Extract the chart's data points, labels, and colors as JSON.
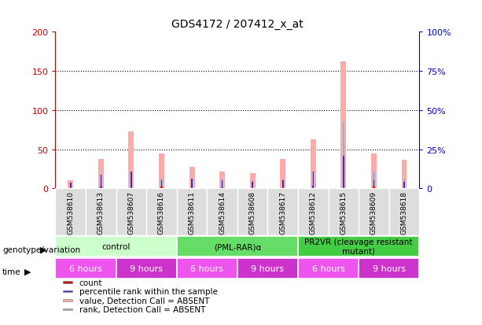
{
  "title": "GDS4172 / 207412_x_at",
  "samples": [
    "GSM538610",
    "GSM538613",
    "GSM538607",
    "GSM538616",
    "GSM538611",
    "GSM538614",
    "GSM538608",
    "GSM538617",
    "GSM538612",
    "GSM538615",
    "GSM538609",
    "GSM538618"
  ],
  "count_values": [
    2,
    2,
    3,
    2,
    2,
    1,
    1,
    2,
    3,
    5,
    2,
    2
  ],
  "percentile_rank": [
    7,
    18,
    22,
    10,
    12,
    10,
    8,
    10,
    22,
    42,
    10,
    8
  ],
  "absent_value": [
    10,
    38,
    73,
    45,
    28,
    22,
    20,
    38,
    63,
    162,
    45,
    37
  ],
  "absent_rank": [
    5,
    18,
    22,
    13,
    12,
    11,
    10,
    13,
    22,
    85,
    22,
    13
  ],
  "genotype_groups": [
    {
      "label": "control",
      "start": 0,
      "end": 4,
      "color": "#ccffcc"
    },
    {
      "label": "(PML-RAR)α",
      "start": 4,
      "end": 8,
      "color": "#66dd66"
    },
    {
      "label": "PR2VR (cleavage resistant\nmutant)",
      "start": 8,
      "end": 12,
      "color": "#44cc44"
    }
  ],
  "time_groups": [
    {
      "label": "6 hours",
      "start": 0,
      "end": 2,
      "color": "#ee55ee"
    },
    {
      "label": "9 hours",
      "start": 2,
      "end": 4,
      "color": "#cc33cc"
    },
    {
      "label": "6 hours",
      "start": 4,
      "end": 6,
      "color": "#ee55ee"
    },
    {
      "label": "9 hours",
      "start": 6,
      "end": 8,
      "color": "#cc33cc"
    },
    {
      "label": "6 hours",
      "start": 8,
      "end": 10,
      "color": "#ee55ee"
    },
    {
      "label": "9 hours",
      "start": 10,
      "end": 12,
      "color": "#cc33cc"
    }
  ],
  "ylim_left": [
    0,
    200
  ],
  "ylim_right": [
    0,
    100
  ],
  "yticks_left": [
    0,
    50,
    100,
    150,
    200
  ],
  "yticks_right": [
    0,
    25,
    50,
    75,
    100
  ],
  "color_count": "#cc0000",
  "color_rank": "#3333cc",
  "color_absent_value": "#ffaaaa",
  "color_absent_rank": "#aaaacc",
  "background_color": "#ffffff",
  "label_genotype": "genotype/variation",
  "label_time": "time",
  "legend_items": [
    {
      "label": "count",
      "color": "#cc0000"
    },
    {
      "label": "percentile rank within the sample",
      "color": "#3333cc"
    },
    {
      "label": "value, Detection Call = ABSENT",
      "color": "#ffaaaa"
    },
    {
      "label": "rank, Detection Call = ABSENT",
      "color": "#aaaacc"
    }
  ]
}
